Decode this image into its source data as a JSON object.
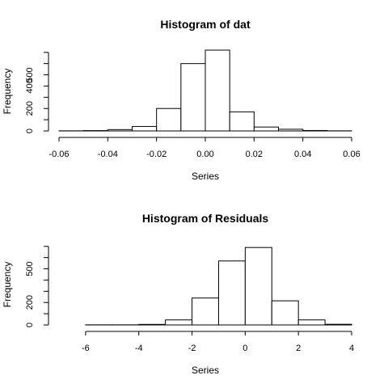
{
  "chart_data": [
    {
      "type": "bar",
      "title": "Histogram of dat",
      "xlabel": "Series",
      "ylabel": "Frequency",
      "xlim": [
        -0.06,
        0.06
      ],
      "ylim": [
        0,
        720
      ],
      "x_ticks": [
        -0.06,
        -0.04,
        -0.02,
        0.0,
        0.02,
        0.04,
        0.06
      ],
      "x_tick_labels": [
        "-0.06",
        "-0.04",
        "-0.02",
        "0.00",
        "0.02",
        "0.04",
        "0.06"
      ],
      "y_ticks": [
        0,
        100,
        200,
        300,
        400,
        500,
        600,
        700
      ],
      "y_tick_labels": [
        "0",
        "",
        "200",
        "",
        "400",
        "500",
        "",
        ""
      ],
      "bins": [
        {
          "start": -0.06,
          "end": -0.05,
          "count": 1
        },
        {
          "start": -0.05,
          "end": -0.04,
          "count": 3
        },
        {
          "start": -0.04,
          "end": -0.03,
          "count": 12
        },
        {
          "start": -0.03,
          "end": -0.02,
          "count": 40
        },
        {
          "start": -0.02,
          "end": -0.01,
          "count": 200
        },
        {
          "start": -0.01,
          "end": 0.0,
          "count": 600
        },
        {
          "start": 0.0,
          "end": 0.01,
          "count": 720
        },
        {
          "start": 0.01,
          "end": 0.02,
          "count": 170
        },
        {
          "start": 0.02,
          "end": 0.03,
          "count": 35
        },
        {
          "start": 0.03,
          "end": 0.04,
          "count": 15
        },
        {
          "start": 0.04,
          "end": 0.05,
          "count": 4
        },
        {
          "start": 0.05,
          "end": 0.06,
          "count": 1
        }
      ]
    },
    {
      "type": "bar",
      "title": "Histogram of Residuals",
      "xlabel": "Series",
      "ylabel": "Frequency",
      "xlim": [
        -7,
        4
      ],
      "ylim": [
        0,
        720
      ],
      "x_ticks": [
        -6,
        -4,
        -2,
        0,
        2,
        4
      ],
      "x_tick_labels": [
        "-6",
        "-4",
        "-2",
        "0",
        "2",
        "4"
      ],
      "y_ticks": [
        0,
        100,
        200,
        300,
        400,
        500,
        600,
        700
      ],
      "y_tick_labels": [
        "0",
        "",
        "200",
        "",
        "",
        "500",
        "",
        ""
      ],
      "bins": [
        {
          "start": -7,
          "end": -6,
          "count": 0
        },
        {
          "start": -6,
          "end": -5,
          "count": 1
        },
        {
          "start": -5,
          "end": -4,
          "count": 1
        },
        {
          "start": -4,
          "end": -3,
          "count": 5
        },
        {
          "start": -3,
          "end": -2,
          "count": 45
        },
        {
          "start": -2,
          "end": -1,
          "count": 240
        },
        {
          "start": -1,
          "end": 0,
          "count": 570
        },
        {
          "start": 0,
          "end": 1,
          "count": 690
        },
        {
          "start": 1,
          "end": 2,
          "count": 215
        },
        {
          "start": 2,
          "end": 3,
          "count": 45
        },
        {
          "start": 3,
          "end": 4,
          "count": 6
        }
      ]
    }
  ]
}
